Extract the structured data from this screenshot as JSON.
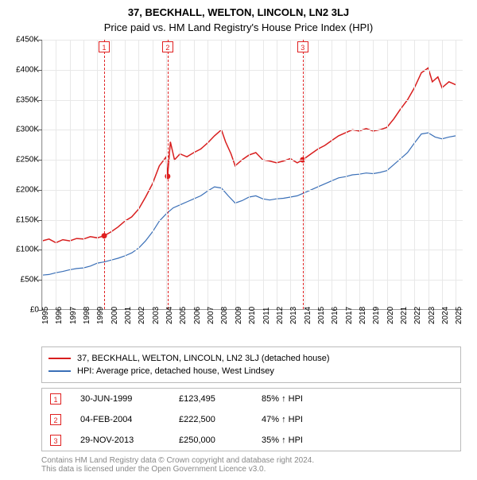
{
  "titles": {
    "main": "37, BECKHALL, WELTON, LINCOLN, LN2 3LJ",
    "sub": "Price paid vs. HM Land Registry's House Price Index (HPI)"
  },
  "chart": {
    "type": "line",
    "background_color": "#ffffff",
    "grid_color": "#e8e8e8",
    "axis_color": "#999999",
    "label_fontsize": 10,
    "x": {
      "min": 1995,
      "max": 2025.5,
      "ticks": [
        1995,
        1996,
        1997,
        1998,
        1999,
        2000,
        2001,
        2002,
        2003,
        2004,
        2005,
        2006,
        2007,
        2008,
        2009,
        2010,
        2011,
        2012,
        2013,
        2014,
        2015,
        2016,
        2017,
        2018,
        2019,
        2020,
        2021,
        2022,
        2023,
        2024,
        2025
      ]
    },
    "y": {
      "min": 0,
      "max": 450000,
      "step": 50000,
      "ticks": [
        "£0",
        "£50K",
        "£100K",
        "£150K",
        "£200K",
        "£250K",
        "£300K",
        "£350K",
        "£400K",
        "£450K"
      ]
    },
    "series": [
      {
        "id": "property",
        "label": "37, BECKHALL, WELTON, LINCOLN, LN2 3LJ (detached house)",
        "color": "#d81e1e",
        "width": 1.5,
        "data": [
          [
            1995.0,
            115000
          ],
          [
            1995.5,
            118000
          ],
          [
            1996.0,
            112000
          ],
          [
            1996.5,
            117000
          ],
          [
            1997.0,
            115000
          ],
          [
            1997.5,
            119000
          ],
          [
            1998.0,
            118000
          ],
          [
            1998.5,
            122000
          ],
          [
            1999.0,
            120000
          ],
          [
            1999.5,
            123495
          ],
          [
            2000.0,
            130000
          ],
          [
            2000.5,
            138000
          ],
          [
            2001.0,
            148000
          ],
          [
            2001.5,
            155000
          ],
          [
            2002.0,
            168000
          ],
          [
            2002.5,
            188000
          ],
          [
            2003.0,
            210000
          ],
          [
            2003.5,
            240000
          ],
          [
            2004.0,
            255000
          ],
          [
            2004.1,
            222500
          ],
          [
            2004.3,
            280000
          ],
          [
            2004.6,
            250000
          ],
          [
            2005.0,
            260000
          ],
          [
            2005.5,
            255000
          ],
          [
            2006.0,
            262000
          ],
          [
            2006.5,
            268000
          ],
          [
            2007.0,
            278000
          ],
          [
            2007.5,
            290000
          ],
          [
            2008.0,
            300000
          ],
          [
            2008.3,
            280000
          ],
          [
            2008.7,
            260000
          ],
          [
            2009.0,
            240000
          ],
          [
            2009.5,
            250000
          ],
          [
            2010.0,
            258000
          ],
          [
            2010.5,
            262000
          ],
          [
            2011.0,
            250000
          ],
          [
            2011.5,
            248000
          ],
          [
            2012.0,
            245000
          ],
          [
            2012.5,
            248000
          ],
          [
            2013.0,
            252000
          ],
          [
            2013.5,
            245000
          ],
          [
            2013.9,
            250000
          ],
          [
            2014.5,
            260000
          ],
          [
            2015.0,
            268000
          ],
          [
            2015.5,
            274000
          ],
          [
            2016.0,
            282000
          ],
          [
            2016.5,
            290000
          ],
          [
            2017.0,
            295000
          ],
          [
            2017.5,
            300000
          ],
          [
            2018.0,
            298000
          ],
          [
            2018.5,
            302000
          ],
          [
            2019.0,
            298000
          ],
          [
            2019.5,
            300000
          ],
          [
            2020.0,
            304000
          ],
          [
            2020.5,
            318000
          ],
          [
            2021.0,
            335000
          ],
          [
            2021.5,
            350000
          ],
          [
            2022.0,
            370000
          ],
          [
            2022.5,
            395000
          ],
          [
            2023.0,
            403000
          ],
          [
            2023.3,
            380000
          ],
          [
            2023.7,
            388000
          ],
          [
            2024.0,
            370000
          ],
          [
            2024.5,
            380000
          ],
          [
            2025.0,
            375000
          ]
        ]
      },
      {
        "id": "hpi",
        "label": "HPI: Average price, detached house, West Lindsey",
        "color": "#3a6fb7",
        "width": 1.2,
        "data": [
          [
            1995.0,
            58000
          ],
          [
            1995.5,
            59000
          ],
          [
            1996.0,
            62000
          ],
          [
            1996.5,
            64000
          ],
          [
            1997.0,
            67000
          ],
          [
            1997.5,
            69000
          ],
          [
            1998.0,
            70000
          ],
          [
            1998.5,
            73000
          ],
          [
            1999.0,
            78000
          ],
          [
            1999.5,
            80000
          ],
          [
            2000.0,
            83000
          ],
          [
            2000.5,
            86000
          ],
          [
            2001.0,
            90000
          ],
          [
            2001.5,
            95000
          ],
          [
            2002.0,
            103000
          ],
          [
            2002.5,
            115000
          ],
          [
            2003.0,
            130000
          ],
          [
            2003.5,
            148000
          ],
          [
            2004.0,
            160000
          ],
          [
            2004.5,
            170000
          ],
          [
            2005.0,
            175000
          ],
          [
            2005.5,
            180000
          ],
          [
            2006.0,
            185000
          ],
          [
            2006.5,
            190000
          ],
          [
            2007.0,
            198000
          ],
          [
            2007.5,
            205000
          ],
          [
            2008.0,
            203000
          ],
          [
            2008.5,
            190000
          ],
          [
            2009.0,
            178000
          ],
          [
            2009.5,
            182000
          ],
          [
            2010.0,
            188000
          ],
          [
            2010.5,
            190000
          ],
          [
            2011.0,
            185000
          ],
          [
            2011.5,
            183000
          ],
          [
            2012.0,
            185000
          ],
          [
            2012.5,
            186000
          ],
          [
            2013.0,
            188000
          ],
          [
            2013.5,
            190000
          ],
          [
            2014.0,
            195000
          ],
          [
            2014.5,
            200000
          ],
          [
            2015.0,
            205000
          ],
          [
            2015.5,
            210000
          ],
          [
            2016.0,
            215000
          ],
          [
            2016.5,
            220000
          ],
          [
            2017.0,
            222000
          ],
          [
            2017.5,
            225000
          ],
          [
            2018.0,
            226000
          ],
          [
            2018.5,
            228000
          ],
          [
            2019.0,
            227000
          ],
          [
            2019.5,
            229000
          ],
          [
            2020.0,
            232000
          ],
          [
            2020.5,
            242000
          ],
          [
            2021.0,
            252000
          ],
          [
            2021.5,
            262000
          ],
          [
            2022.0,
            278000
          ],
          [
            2022.5,
            293000
          ],
          [
            2023.0,
            295000
          ],
          [
            2023.5,
            288000
          ],
          [
            2024.0,
            285000
          ],
          [
            2024.5,
            288000
          ],
          [
            2025.0,
            290000
          ]
        ]
      }
    ],
    "markers": [
      {
        "n": "1",
        "x": 1999.5,
        "y": 123495,
        "color": "#e02020"
      },
      {
        "n": "2",
        "x": 2004.1,
        "y": 222500,
        "color": "#e02020"
      },
      {
        "n": "3",
        "x": 2013.9,
        "y": 250000,
        "color": "#e02020"
      }
    ]
  },
  "legend": {
    "rows": [
      {
        "color": "#d81e1e",
        "label": "37, BECKHALL, WELTON, LINCOLN, LN2 3LJ (detached house)"
      },
      {
        "color": "#3a6fb7",
        "label": "HPI: Average price, detached house, West Lindsey"
      }
    ]
  },
  "sales": {
    "rows": [
      {
        "n": "1",
        "date": "30-JUN-1999",
        "price": "£123,495",
        "pct": "85% ↑ HPI"
      },
      {
        "n": "2",
        "date": "04-FEB-2004",
        "price": "£222,500",
        "pct": "47% ↑ HPI"
      },
      {
        "n": "3",
        "date": "29-NOV-2013",
        "price": "£250,000",
        "pct": "35% ↑ HPI"
      }
    ]
  },
  "footer": {
    "line1": "Contains HM Land Registry data © Crown copyright and database right 2024.",
    "line2": "This data is licensed under the Open Government Licence v3.0."
  }
}
